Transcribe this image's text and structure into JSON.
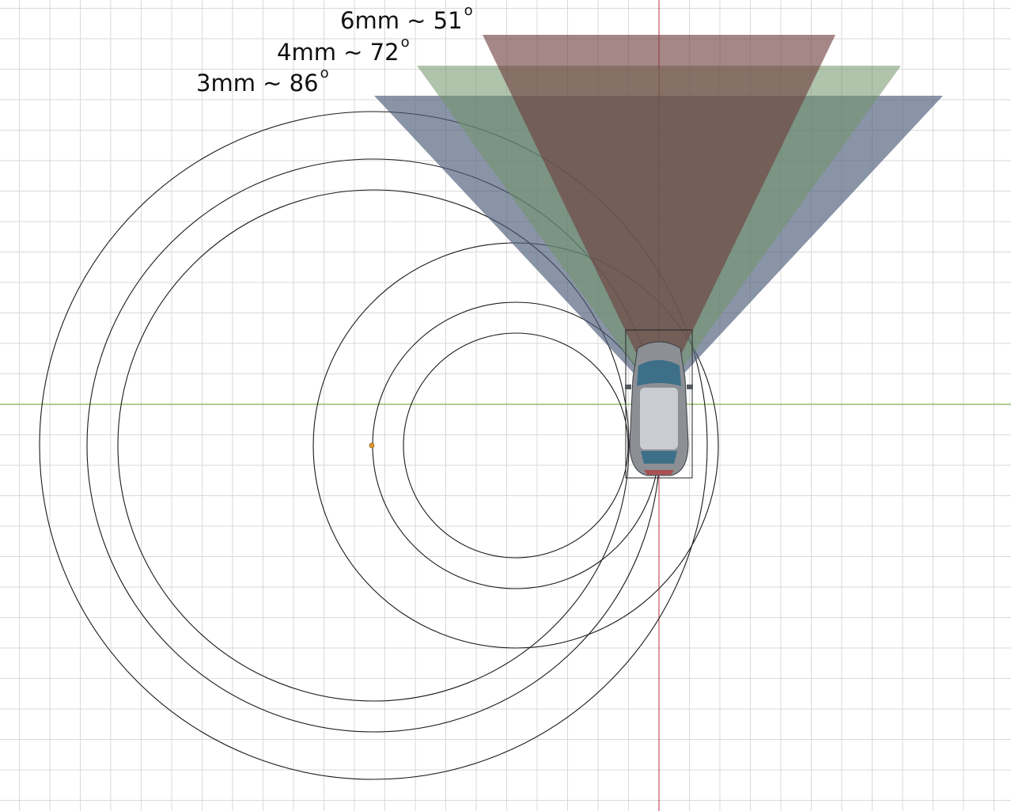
{
  "labels": {
    "lens_6mm": {
      "text": "6mm ~ 51",
      "degree_mark": "o"
    },
    "lens_4mm": {
      "text": "4mm ~ 72",
      "degree_mark": "o"
    },
    "lens_3mm": {
      "text": "3mm ~ 86",
      "degree_mark": "o"
    }
  },
  "colors": {
    "background": "#ffffff",
    "grid_line": "#d9d9d9",
    "x_axis": "#7fb24c",
    "y_axis": "#c8545c",
    "circle_stroke": "#1a1a1a",
    "fov_6mm": "#7a4a4a",
    "fov_4mm": "#7a9a70",
    "fov_3mm": "#4e5d7a",
    "center_marker": "#e39a2b"
  },
  "icons": {
    "vehicle": "car-top-view-icon",
    "center": "pivot-point-icon"
  }
}
